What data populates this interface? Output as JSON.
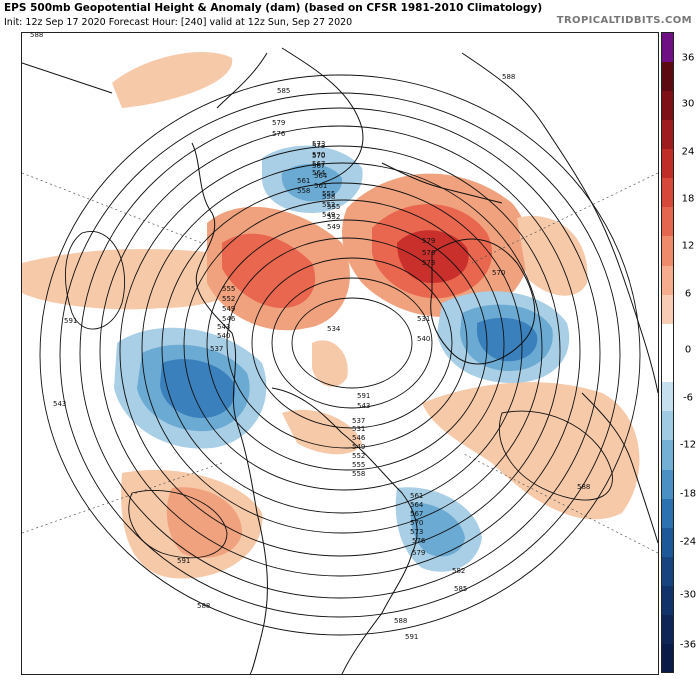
{
  "header": {
    "title": "EPS 500mb Geopotential Height & Anomaly (dam) (based on CFSR 1981-2010 Climatology)",
    "subtitle": "Init: 12z Sep 17 2020   Forecast Hour: [240]   valid at 12z Sun, Sep 27 2020",
    "brand": "TROPICALTIDBITS.COM"
  },
  "map": {
    "contour_labels": [
      "588",
      "585",
      "588",
      "579",
      "576",
      "573",
      "570",
      "567",
      "564",
      "561",
      "558",
      "555",
      "552",
      "549",
      "573",
      "570",
      "567",
      "564",
      "561",
      "558",
      "555",
      "552",
      "549",
      "579",
      "576",
      "573",
      "570",
      "591",
      "555",
      "552",
      "549",
      "546",
      "543",
      "540",
      "537",
      "534",
      "531",
      "540",
      "543",
      "588",
      "591",
      "588",
      "591",
      "543",
      "537",
      "531",
      "546",
      "549",
      "552",
      "555",
      "558",
      "561",
      "564",
      "567",
      "570",
      "573",
      "576",
      "579",
      "582",
      "585",
      "588",
      "591"
    ],
    "anomaly_colors": {
      "positive_light": "#f6c9a9",
      "positive_mid": "#f0a27e",
      "positive_strong": "#e8674e",
      "positive_max": "#c9302c",
      "negative_light": "#a9cfe6",
      "negative_mid": "#6aaad3",
      "negative_strong": "#3a80bd",
      "negative_max": "#1f5c99"
    }
  },
  "colorbar": {
    "ticks": [
      "36",
      "30",
      "24",
      "18",
      "12",
      "6",
      "0",
      "-6",
      "-12",
      "-18",
      "-24",
      "-30",
      "-36"
    ],
    "colors": [
      "#6e0f84",
      "#5b0a12",
      "#7c1016",
      "#9e1b1e",
      "#bf2d26",
      "#d5483a",
      "#e4664f",
      "#ef8a6b",
      "#f5ad8e",
      "#f9cdb5",
      "#ffffff",
      "#ffffff",
      "#c6e0ef",
      "#9fcbe5",
      "#74afd6",
      "#4a90c5",
      "#2d72b0",
      "#1d5899",
      "#17447f",
      "#12336a",
      "#0e2556",
      "#0b1b48"
    ]
  }
}
